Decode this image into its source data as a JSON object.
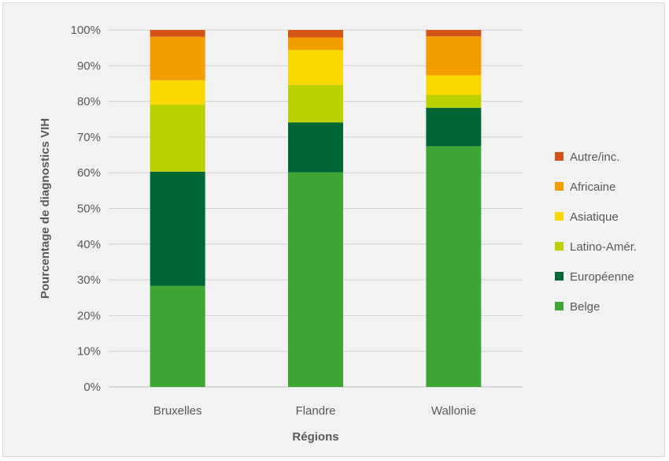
{
  "chart_data": {
    "type": "bar",
    "stacked": true,
    "title": "",
    "xlabel": "Régions",
    "ylabel": "Pourcentage de diagnostics VIH",
    "ylim": [
      0,
      100
    ],
    "yticks": [
      "0%",
      "10%",
      "20%",
      "30%",
      "40%",
      "50%",
      "60%",
      "70%",
      "80%",
      "90%",
      "100%"
    ],
    "grid": true,
    "legend_position": "right",
    "categories": [
      "Bruxelles",
      "Flandre",
      "Wallonie"
    ],
    "series": [
      {
        "name": "Belge",
        "color": "#3fa535",
        "values": [
          28.3,
          60.1,
          67.4
        ]
      },
      {
        "name": "Européenne",
        "color": "#006633",
        "values": [
          32.0,
          14.0,
          10.8
        ]
      },
      {
        "name": "Latino-Amér.",
        "color": "#bcd000",
        "values": [
          18.8,
          10.5,
          3.6
        ]
      },
      {
        "name": "Asiatique",
        "color": "#f9d800",
        "values": [
          6.8,
          9.8,
          5.5
        ]
      },
      {
        "name": "Africaine",
        "color": "#f29e00",
        "values": [
          12.2,
          3.5,
          10.9
        ]
      },
      {
        "name": "Autre/inc.",
        "color": "#d35319",
        "values": [
          1.9,
          2.1,
          1.8
        ]
      }
    ]
  }
}
